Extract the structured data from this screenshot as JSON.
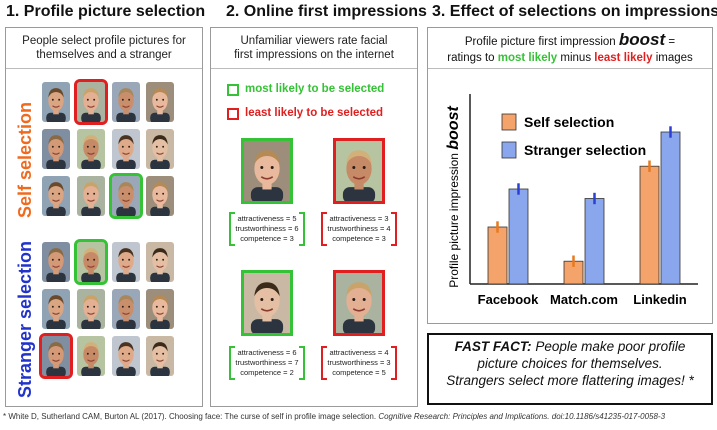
{
  "headings": {
    "h1": "1. Profile picture selection",
    "h2": "2. Online first impressions",
    "h3": "3. Effect of selections on impressions"
  },
  "panel1": {
    "subtitle_line1": "People select profile pictures for",
    "subtitle_line2": "themselves and a stranger",
    "self_label": "Self selection",
    "stranger_label": "Stranger selection"
  },
  "panel2": {
    "subtitle_line1": "Unfamiliar viewers rate facial",
    "subtitle_line2": "first impressions on the internet",
    "legend_most": "most likely to be selected",
    "legend_least": "least likely to be selected",
    "ratings": [
      {
        "attr": "attractiveness = 5",
        "trust": "trustworthiness = 6",
        "comp": "competence = 3"
      },
      {
        "attr": "attractiveness = 3",
        "trust": "trustworthiness = 4",
        "comp": "competence = 3"
      },
      {
        "attr": "attractiveness = 6",
        "trust": "trustworthiness = 7",
        "comp": "competence = 2"
      },
      {
        "attr": "attractiveness = 4",
        "trust": "trustworthiness = 3",
        "comp": "competence = 5"
      }
    ]
  },
  "panel3": {
    "def_prefix": "Profile picture first impression",
    "def_boost": "boost",
    "def_equals": "=",
    "def_ratings_to": "ratings to",
    "def_most": "most likely",
    "def_minus": "minus",
    "def_least": "least likely",
    "def_images": "images"
  },
  "fast_fact": {
    "label": "FAST FACT:",
    "text1": "People make poor profile",
    "text2": "picture choices for themselves.",
    "text3": "Strangers select more flattering images! *"
  },
  "citation": {
    "authors": "* White D, Sutherland CAM, Burton AL (2017). Choosing face: The curse of self in profile image selection.",
    "journal": "Cognitive Research: Principles and Implications.",
    "doi": "doi:10.1186/s41235-017-0058-3"
  },
  "colors": {
    "self": "#f4a46a",
    "stranger": "#8aa7ee",
    "self_err": "#e8791f",
    "stranger_err": "#2a3fd6",
    "green": "#36c236",
    "red": "#e02020",
    "self_label": "#f06a1e",
    "stranger_label": "#2233cc"
  },
  "chart_data": {
    "type": "bar",
    "categories": [
      "Facebook",
      "Match.com",
      "Linkedin"
    ],
    "series": [
      {
        "name": "Self selection",
        "values": [
          0.3,
          0.12,
          0.62
        ],
        "errors": [
          0.03,
          0.03,
          0.03
        ]
      },
      {
        "name": "Stranger selection",
        "values": [
          0.5,
          0.45,
          0.8
        ],
        "errors": [
          0.03,
          0.03,
          0.03
        ]
      }
    ],
    "title": "",
    "xlabel": "",
    "ylabel_prefix": "Profile picture impression",
    "ylabel_emph": "boost",
    "ylim": [
      0,
      1
    ],
    "legend": "top-left",
    "grid": false
  }
}
